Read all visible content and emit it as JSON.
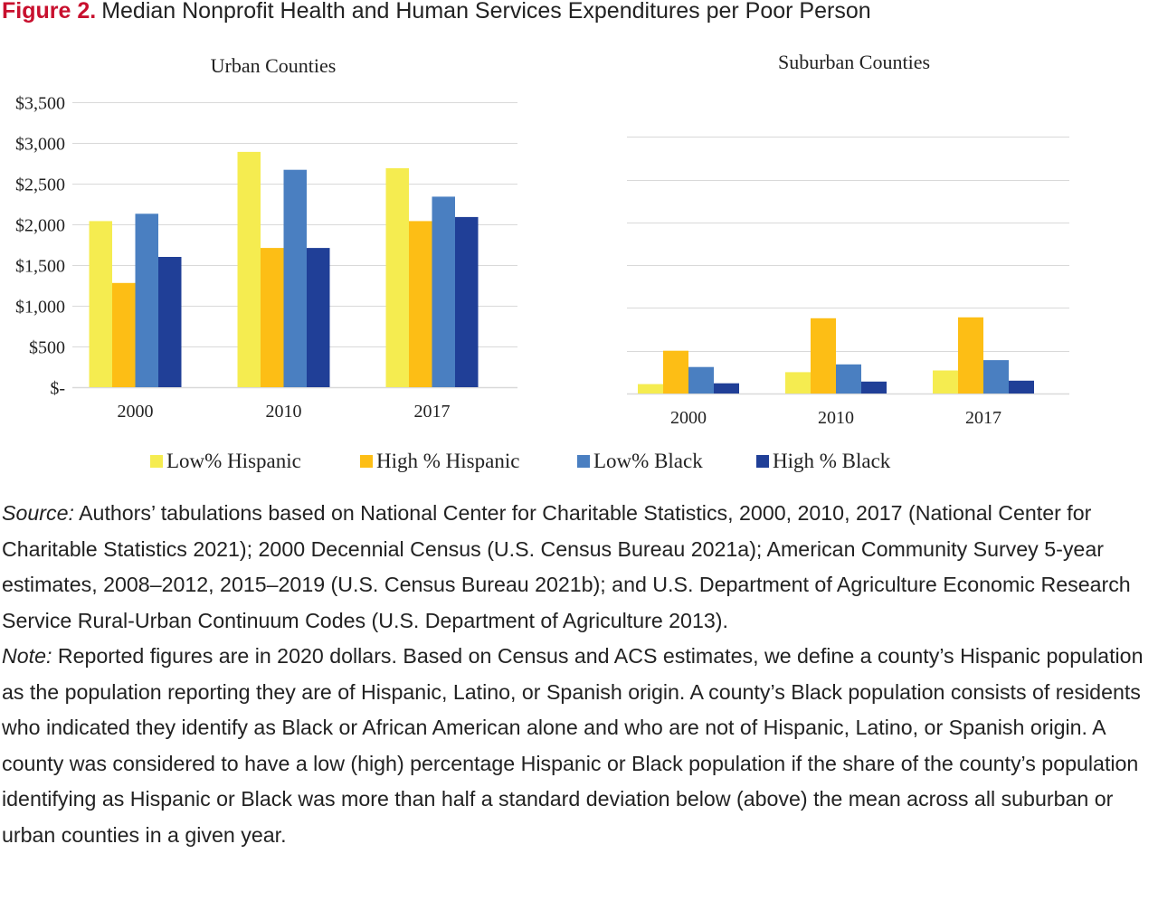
{
  "figure": {
    "label": "Figure 2.",
    "title": "Median Nonprofit Health and Human Services Expenditures per Poor Person"
  },
  "colors": {
    "low_hispanic": "#F5EC50",
    "high_hispanic": "#FDBE15",
    "low_black": "#4A7FC1",
    "high_black": "#203F97",
    "title_accent": "#C8102E",
    "gridline": "#D9D9D9"
  },
  "legend": [
    {
      "label": "Low% Hispanic",
      "color": "#F5EC50"
    },
    {
      "label": "High % Hispanic",
      "color": "#FDBE15"
    },
    {
      "label": "Low% Black",
      "color": "#4A7FC1"
    },
    {
      "label": "High % Black",
      "color": "#203F97"
    }
  ],
  "chart_data": [
    {
      "type": "bar",
      "title": "Urban Counties",
      "categories": [
        "2000",
        "2010",
        "2017"
      ],
      "ylim": [
        0,
        3500
      ],
      "ytick_values": [
        0,
        500,
        1000,
        1500,
        2000,
        2500,
        3000,
        3500
      ],
      "ytick_labels": [
        "$-",
        "$500",
        "$1,000",
        "$1,500",
        "$2,000",
        "$2,500",
        "$3,000",
        "$3,500"
      ],
      "grid": true,
      "legend_position": "bottom",
      "series": [
        {
          "name": "Low% Hispanic",
          "values": [
            2040,
            2890,
            2690
          ]
        },
        {
          "name": "High % Hispanic",
          "values": [
            1280,
            1710,
            2040
          ]
        },
        {
          "name": "Low% Black",
          "values": [
            2130,
            2670,
            2340
          ]
        },
        {
          "name": "High % Black",
          "values": [
            1600,
            1710,
            2090
          ]
        }
      ]
    },
    {
      "type": "bar",
      "title": "Suburban Counties",
      "categories": [
        "2000",
        "2010",
        "2017"
      ],
      "ylim": [
        0,
        3500
      ],
      "ytick_values": [
        0,
        500,
        1000,
        1500,
        2000,
        2500,
        3000
      ],
      "ytick_labels": [],
      "grid": true,
      "legend_position": "bottom",
      "series": [
        {
          "name": "Low% Hispanic",
          "values": [
            110,
            250,
            270
          ]
        },
        {
          "name": "High % Hispanic",
          "values": [
            500,
            880,
            890
          ]
        },
        {
          "name": "Low% Black",
          "values": [
            310,
            340,
            390
          ]
        },
        {
          "name": "High % Black",
          "values": [
            120,
            140,
            150
          ]
        }
      ]
    }
  ],
  "notes": {
    "source_label": "Source:",
    "source_text": " Authors’ tabulations based on National Center for Charitable Statistics, 2000, 2010, 2017 (Na­tional Center for Charitable Statistics 2021); 2000 Decennial Census (U.S. Census Bureau 2021a); American Community Survey 5-year estimates, 2008–2012, 2015–2019 (U.S. Census Bureau 2021b); and U.S. Department of Agriculture Economic Research Service Rural-Urban Continuum Codes (U.S. Department of Agriculture 2013).",
    "note_label": "Note:",
    "note_text": " Reported figures are in 2020 dollars. Based on Census and ACS estimates, we define a county’s Hispanic population as the population reporting they are of Hispanic, Latino, or Spanish origin. A coun­ty’s Black population consists of residents who indicated they identify as Black or African American alone and who are not of Hispanic, Latino, or Spanish origin. A county was considered to have a low (high) percentage Hispanic or Black population if the share of the county’s population identifying as Hispanic or Black was more than half a standard deviation below (above) the mean across all suburban or urban counties in a given year."
  }
}
